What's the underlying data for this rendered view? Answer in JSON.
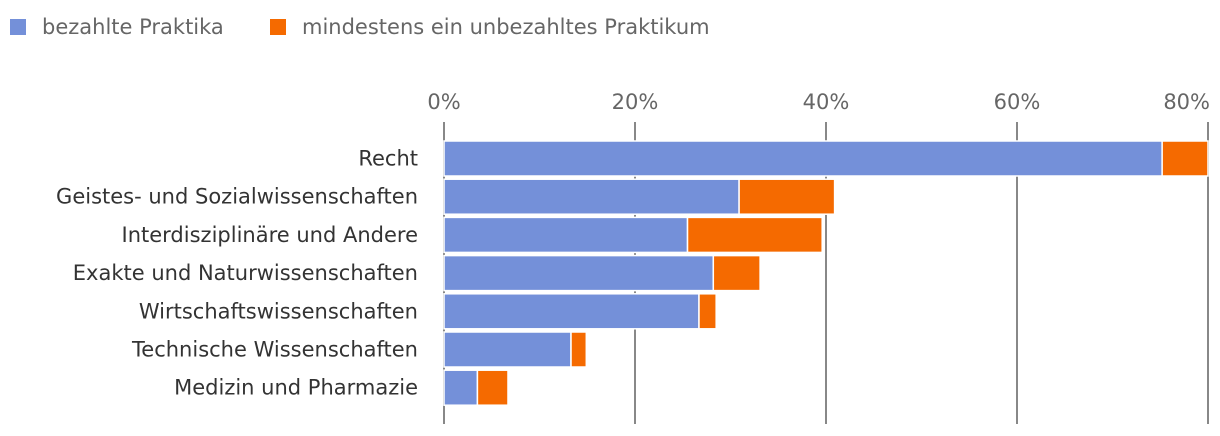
{
  "chart_data": {
    "type": "bar",
    "orientation": "horizontal",
    "stacked": true,
    "title": "",
    "xlabel": "",
    "ylabel": "",
    "xlim": [
      0,
      80
    ],
    "x_ticks": [
      0,
      20,
      40,
      60,
      80
    ],
    "x_tick_labels": [
      "0%",
      "20%",
      "40%",
      "60%",
      "80%"
    ],
    "x_axis_position": "top",
    "grid": true,
    "legend_position": "top-left",
    "categories": [
      "Recht",
      "Geistes- und Sozialwissenschaften",
      "Interdisziplinäre und Andere",
      "Exakte und Naturwissenschaften",
      "Wirtschaftswissenschaften",
      "Technische Wissenschaften",
      "Medizin und Pharmazie"
    ],
    "series": [
      {
        "name": "bezahlte Praktika",
        "color": "#7490d9",
        "values": [
          75.2,
          30.9,
          25.5,
          28.2,
          26.7,
          13.3,
          3.5
        ]
      },
      {
        "name": "mindestens ein unbezahltes Praktikum",
        "color": "#f56a00",
        "values": [
          4.8,
          10.0,
          14.1,
          4.9,
          1.8,
          1.6,
          3.2
        ]
      }
    ]
  }
}
